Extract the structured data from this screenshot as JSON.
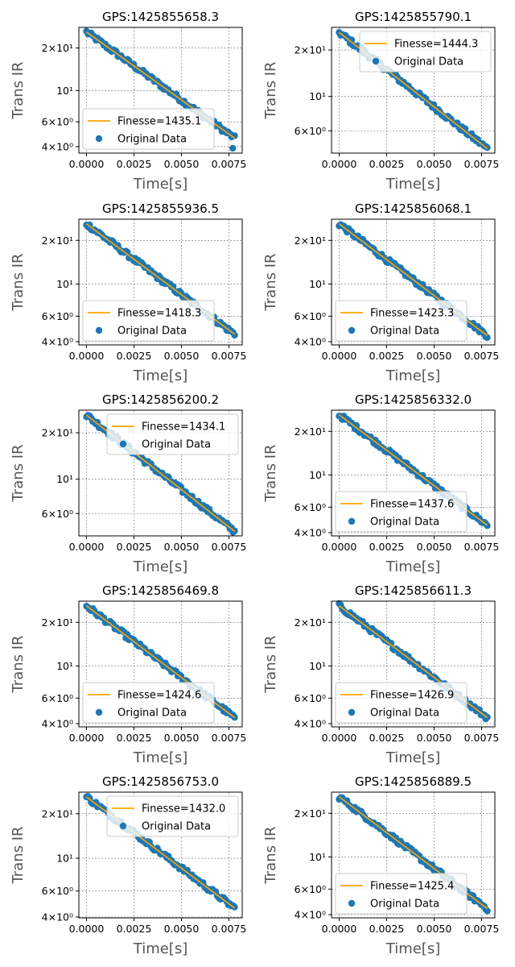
{
  "figure": {
    "colors": {
      "data": "#1f77b4",
      "fit": "#ffa500",
      "grid": "#6e6e6e",
      "axis_label": "#555555"
    }
  },
  "chart_data": [
    {
      "type": "scatter",
      "title": "GPS:1425855658.3",
      "xlabel": "Time[s]",
      "ylabel": "Trans IR",
      "yscale": "log",
      "xlim": [
        -0.0004,
        0.0082
      ],
      "ylim": [
        3.6,
        28
      ],
      "xticks": [
        "0.0000",
        "0.0025",
        "0.0050",
        "0.0075"
      ],
      "xtick_values": [
        0,
        0.0025,
        0.005,
        0.0075
      ],
      "yticks": [
        {
          "value": 4,
          "label": "4×10⁰"
        },
        {
          "value": 6,
          "label": "6×10⁰"
        },
        {
          "value": 10,
          "label": "10¹"
        },
        {
          "value": 20,
          "label": "2×10¹"
        }
      ],
      "grid": true,
      "legend_position": "lower-left",
      "series": [
        {
          "name": "Finesse=1435.1",
          "kind": "line",
          "x": [
            0,
            0.0078
          ],
          "y": [
            26,
            4.6
          ]
        },
        {
          "name": "Original Data",
          "kind": "scatter",
          "x": [
            0,
            0.0078
          ],
          "y": [
            26,
            4.6
          ]
        }
      ],
      "outliers": [
        {
          "x": 0.0077,
          "y": 3.9
        }
      ]
    },
    {
      "type": "scatter",
      "title": "GPS:1425855790.1",
      "xlabel": "Time[s]",
      "ylabel": "Trans IR",
      "yscale": "log",
      "xlim": [
        -0.0004,
        0.0082
      ],
      "ylim": [
        4.3,
        28
      ],
      "xticks": [
        "0.0000",
        "0.0025",
        "0.0050",
        "0.0075"
      ],
      "xtick_values": [
        0,
        0.0025,
        0.005,
        0.0075
      ],
      "yticks": [
        {
          "value": 6,
          "label": "6×10⁰"
        },
        {
          "value": 10,
          "label": "10¹"
        },
        {
          "value": 20,
          "label": "2×10¹"
        }
      ],
      "grid": true,
      "legend_position": "top-right",
      "series": [
        {
          "name": "Finesse=1444.3",
          "kind": "line",
          "x": [
            0,
            0.0078
          ],
          "y": [
            26,
            4.6
          ]
        },
        {
          "name": "Original Data",
          "kind": "scatter",
          "x": [
            0,
            0.0078
          ],
          "y": [
            26,
            4.6
          ]
        }
      ],
      "outliers": []
    },
    {
      "type": "scatter",
      "title": "GPS:1425855936.5",
      "xlabel": "Time[s]",
      "ylabel": "Trans IR",
      "yscale": "log",
      "xlim": [
        -0.0004,
        0.0082
      ],
      "ylim": [
        3.8,
        28
      ],
      "xticks": [
        "0.0000",
        "0.0025",
        "0.0050",
        "0.0075"
      ],
      "xtick_values": [
        0,
        0.0025,
        0.005,
        0.0075
      ],
      "yticks": [
        {
          "value": 4,
          "label": "4×10⁰"
        },
        {
          "value": 6,
          "label": "6×10⁰"
        },
        {
          "value": 10,
          "label": "10¹"
        },
        {
          "value": 20,
          "label": "2×10¹"
        }
      ],
      "grid": true,
      "legend_position": "lower-left",
      "series": [
        {
          "name": "Finesse=1418.3",
          "kind": "line",
          "x": [
            0,
            0.0078
          ],
          "y": [
            26,
            4.5
          ]
        },
        {
          "name": "Original Data",
          "kind": "scatter",
          "x": [
            0,
            0.0078
          ],
          "y": [
            26,
            4.5
          ]
        }
      ],
      "outliers": []
    },
    {
      "type": "scatter",
      "title": "GPS:1425856068.1",
      "xlabel": "Time[s]",
      "ylabel": "Trans IR",
      "yscale": "log",
      "xlim": [
        -0.0004,
        0.0082
      ],
      "ylim": [
        3.8,
        28
      ],
      "xticks": [
        "0.0000",
        "0.0025",
        "0.0050",
        "0.0075"
      ],
      "xtick_values": [
        0,
        0.0025,
        0.005,
        0.0075
      ],
      "yticks": [
        {
          "value": 4,
          "label": "4×10⁰"
        },
        {
          "value": 6,
          "label": "6×10⁰"
        },
        {
          "value": 10,
          "label": "10¹"
        },
        {
          "value": 20,
          "label": "2×10¹"
        }
      ],
      "grid": true,
      "legend_position": "lower-left",
      "series": [
        {
          "name": "Finesse=1423.3",
          "kind": "line",
          "x": [
            0,
            0.0078
          ],
          "y": [
            26,
            4.4
          ]
        },
        {
          "name": "Original Data",
          "kind": "scatter",
          "x": [
            0,
            0.0078
          ],
          "y": [
            26,
            4.4
          ]
        }
      ],
      "outliers": []
    },
    {
      "type": "scatter",
      "title": "GPS:1425856200.2",
      "xlabel": "Time[s]",
      "ylabel": "Trans IR",
      "yscale": "log",
      "xlim": [
        -0.0004,
        0.0082
      ],
      "ylim": [
        4.3,
        28
      ],
      "xticks": [
        "0.0000",
        "0.0025",
        "0.0050",
        "0.0075"
      ],
      "xtick_values": [
        0,
        0.0025,
        0.005,
        0.0075
      ],
      "yticks": [
        {
          "value": 6,
          "label": "6×10⁰"
        },
        {
          "value": 10,
          "label": "10¹"
        },
        {
          "value": 20,
          "label": "2×10¹"
        }
      ],
      "grid": true,
      "legend_position": "top-right",
      "series": [
        {
          "name": "Finesse=1434.1",
          "kind": "line",
          "x": [
            0,
            0.0078
          ],
          "y": [
            26,
            4.6
          ]
        },
        {
          "name": "Original Data",
          "kind": "scatter",
          "x": [
            0,
            0.0078
          ],
          "y": [
            26,
            4.6
          ]
        }
      ],
      "outliers": []
    },
    {
      "type": "scatter",
      "title": "GPS:1425856332.0",
      "xlabel": "Time[s]",
      "ylabel": "Trans IR",
      "yscale": "log",
      "xlim": [
        -0.0004,
        0.0082
      ],
      "ylim": [
        3.8,
        28
      ],
      "xticks": [
        "0.0000",
        "0.0025",
        "0.0050",
        "0.0075"
      ],
      "xtick_values": [
        0,
        0.0025,
        0.005,
        0.0075
      ],
      "yticks": [
        {
          "value": 4,
          "label": "4×10⁰"
        },
        {
          "value": 6,
          "label": "6×10⁰"
        },
        {
          "value": 10,
          "label": "10¹"
        },
        {
          "value": 20,
          "label": "2×10¹"
        }
      ],
      "grid": true,
      "legend_position": "lower-left",
      "series": [
        {
          "name": "Finesse=1437.6",
          "kind": "line",
          "x": [
            0,
            0.0078
          ],
          "y": [
            26,
            4.5
          ]
        },
        {
          "name": "Original Data",
          "kind": "scatter",
          "x": [
            0,
            0.0078
          ],
          "y": [
            26,
            4.5
          ]
        }
      ],
      "outliers": []
    },
    {
      "type": "scatter",
      "title": "GPS:1425856469.8",
      "xlabel": "Time[s]",
      "ylabel": "Trans IR",
      "yscale": "log",
      "xlim": [
        -0.0004,
        0.0082
      ],
      "ylim": [
        3.8,
        28
      ],
      "xticks": [
        "0.0000",
        "0.0025",
        "0.0050",
        "0.0075"
      ],
      "xtick_values": [
        0,
        0.0025,
        0.005,
        0.0075
      ],
      "yticks": [
        {
          "value": 4,
          "label": "4×10⁰"
        },
        {
          "value": 6,
          "label": "6×10⁰"
        },
        {
          "value": 10,
          "label": "10¹"
        },
        {
          "value": 20,
          "label": "2×10¹"
        }
      ],
      "grid": true,
      "legend_position": "lower-left",
      "series": [
        {
          "name": "Finesse=1424.6",
          "kind": "line",
          "x": [
            0,
            0.0078
          ],
          "y": [
            26,
            4.4
          ]
        },
        {
          "name": "Original Data",
          "kind": "scatter",
          "x": [
            0,
            0.0078
          ],
          "y": [
            26,
            4.4
          ]
        }
      ],
      "outliers": []
    },
    {
      "type": "scatter",
      "title": "GPS:1425856611.3",
      "xlabel": "Time[s]",
      "ylabel": "Trans IR",
      "yscale": "log",
      "xlim": [
        -0.0004,
        0.0082
      ],
      "ylim": [
        3.8,
        28
      ],
      "xticks": [
        "0.0000",
        "0.0025",
        "0.0050",
        "0.0075"
      ],
      "xtick_values": [
        0,
        0.0025,
        0.005,
        0.0075
      ],
      "yticks": [
        {
          "value": 4,
          "label": "4×10⁰"
        },
        {
          "value": 6,
          "label": "6×10⁰"
        },
        {
          "value": 10,
          "label": "10¹"
        },
        {
          "value": 20,
          "label": "2×10¹"
        }
      ],
      "grid": true,
      "legend_position": "lower-left",
      "series": [
        {
          "name": "Finesse=1426.9",
          "kind": "line",
          "x": [
            0,
            0.0078
          ],
          "y": [
            26,
            4.4
          ]
        },
        {
          "name": "Original Data",
          "kind": "scatter",
          "x": [
            0,
            0.0078
          ],
          "y": [
            26,
            4.4
          ]
        }
      ],
      "outliers": []
    },
    {
      "type": "scatter",
      "title": "GPS:1425856753.0",
      "xlabel": "Time[s]",
      "ylabel": "Trans IR",
      "yscale": "log",
      "xlim": [
        -0.0004,
        0.0082
      ],
      "ylim": [
        3.95,
        28
      ],
      "xticks": [
        "0.0000",
        "0.0025",
        "0.0050",
        "0.0075"
      ],
      "xtick_values": [
        0,
        0.0025,
        0.005,
        0.0075
      ],
      "yticks": [
        {
          "value": 4,
          "label": "4×10⁰"
        },
        {
          "value": 6,
          "label": "6×10⁰"
        },
        {
          "value": 10,
          "label": "10¹"
        },
        {
          "value": 20,
          "label": "2×10¹"
        }
      ],
      "grid": true,
      "legend_position": "top-right",
      "series": [
        {
          "name": "Finesse=1432.0",
          "kind": "line",
          "x": [
            0,
            0.0078
          ],
          "y": [
            26,
            4.6
          ]
        },
        {
          "name": "Original Data",
          "kind": "scatter",
          "x": [
            0,
            0.0078
          ],
          "y": [
            26,
            4.6
          ]
        }
      ],
      "outliers": []
    },
    {
      "type": "scatter",
      "title": "GPS:1425856889.5",
      "xlabel": "Time[s]",
      "ylabel": "Trans IR",
      "yscale": "log",
      "xlim": [
        -0.0004,
        0.0082
      ],
      "ylim": [
        3.8,
        28
      ],
      "xticks": [
        "0.0000",
        "0.0025",
        "0.0050",
        "0.0075"
      ],
      "xtick_values": [
        0,
        0.0025,
        0.005,
        0.0075
      ],
      "yticks": [
        {
          "value": 4,
          "label": "4×10⁰"
        },
        {
          "value": 6,
          "label": "6×10⁰"
        },
        {
          "value": 10,
          "label": "10¹"
        },
        {
          "value": 20,
          "label": "2×10¹"
        }
      ],
      "grid": true,
      "legend_position": "lower-left",
      "series": [
        {
          "name": "Finesse=1425.4",
          "kind": "line",
          "x": [
            0,
            0.0078
          ],
          "y": [
            26,
            4.4
          ]
        },
        {
          "name": "Original Data",
          "kind": "scatter",
          "x": [
            0,
            0.0078
          ],
          "y": [
            26,
            4.4
          ]
        }
      ],
      "outliers": []
    }
  ]
}
